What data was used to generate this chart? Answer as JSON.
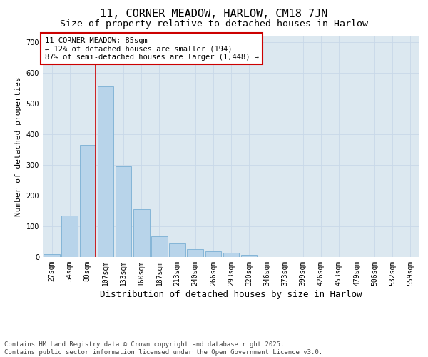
{
  "title_line1": "11, CORNER MEADOW, HARLOW, CM18 7JN",
  "title_line2": "Size of property relative to detached houses in Harlow",
  "xlabel": "Distribution of detached houses by size in Harlow",
  "ylabel": "Number of detached properties",
  "bar_labels": [
    "27sqm",
    "54sqm",
    "80sqm",
    "107sqm",
    "133sqm",
    "160sqm",
    "187sqm",
    "213sqm",
    "240sqm",
    "266sqm",
    "293sqm",
    "320sqm",
    "346sqm",
    "373sqm",
    "399sqm",
    "426sqm",
    "453sqm",
    "479sqm",
    "506sqm",
    "532sqm",
    "559sqm"
  ],
  "bar_values": [
    10,
    135,
    365,
    555,
    295,
    155,
    68,
    45,
    25,
    18,
    13,
    6,
    0,
    0,
    0,
    0,
    0,
    0,
    0,
    0,
    0
  ],
  "bar_color": "#b8d4ea",
  "bar_edge_color": "#7aafd4",
  "vline_color": "#cc0000",
  "vline_x": 2.43,
  "annotation_text": "11 CORNER MEADOW: 85sqm\n← 12% of detached houses are smaller (194)\n87% of semi-detached houses are larger (1,448) →",
  "annotation_box_facecolor": "#ffffff",
  "annotation_box_edgecolor": "#cc0000",
  "ylim": [
    0,
    720
  ],
  "yticks": [
    0,
    100,
    200,
    300,
    400,
    500,
    600,
    700
  ],
  "grid_color": "#c8d8e8",
  "bg_color": "#dce8f0",
  "fig_bg_color": "#ffffff",
  "footnote": "Contains HM Land Registry data © Crown copyright and database right 2025.\nContains public sector information licensed under the Open Government Licence v3.0.",
  "title_fontsize": 11,
  "subtitle_fontsize": 9.5,
  "xlabel_fontsize": 9,
  "ylabel_fontsize": 8,
  "tick_fontsize": 7,
  "annotation_fontsize": 7.5,
  "footnote_fontsize": 6.5
}
